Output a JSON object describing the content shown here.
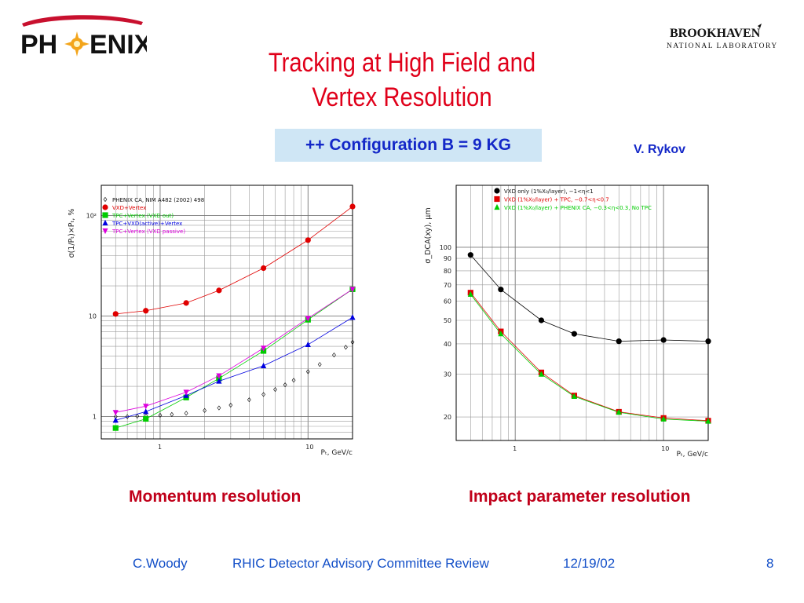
{
  "logos": {
    "left": {
      "text_ph": "PH",
      "text_enix": "ENIX"
    },
    "right": {
      "line1": "BROOKHAVEN",
      "line2": "NATIONAL LABORATORY"
    }
  },
  "title": {
    "line1": "Tracking at High Field and",
    "line2": "Vertex Resolution"
  },
  "config_box": "++ Configuration  B = 9 KG",
  "author": "V. Rykov",
  "captions": {
    "left": "Momentum resolution",
    "right": "Impact parameter resolution"
  },
  "footer": {
    "author": "C.Woody",
    "event": "RHIC Detector Advisory Committee Review",
    "date": "12/19/02",
    "page": "8"
  },
  "colors": {
    "title": "#e0001a",
    "accent_blue": "#1428c8",
    "caption": "#c0001a",
    "box": "#cfe6f5"
  },
  "chart_data": [
    {
      "type": "line",
      "xscale": "log",
      "yscale": "log",
      "xlim": [
        0.4,
        20
      ],
      "ylim": [
        0.6,
        200
      ],
      "xlabel": "Pₜ, GeV/c",
      "ylabel": "σ(1/Pₜ)×Pₜ, %",
      "xticks": [
        {
          "v": 1,
          "label": "1"
        },
        {
          "v": 10,
          "label": "10"
        }
      ],
      "yticks": [
        {
          "v": 1,
          "label": "1"
        },
        {
          "v": 10,
          "label": "10"
        },
        {
          "v": 100,
          "label": "10²"
        }
      ],
      "grid": true,
      "legend_position": "top-left",
      "series": [
        {
          "name": "PHENIX CA, NIM A482 (2002) 498",
          "color": "#000000",
          "marker": "diamond",
          "x": [
            0.5,
            0.6,
            0.7,
            0.8,
            1.0,
            1.2,
            1.5,
            2,
            2.5,
            3,
            4,
            5,
            6,
            7,
            8,
            10,
            12,
            15,
            18,
            20
          ],
          "y": [
            1.0,
            1.0,
            1.01,
            1.02,
            1.03,
            1.05,
            1.08,
            1.15,
            1.22,
            1.3,
            1.47,
            1.66,
            1.86,
            2.07,
            2.3,
            2.8,
            3.3,
            4.1,
            4.9,
            5.5
          ]
        },
        {
          "name": "VXD+Vertex",
          "color": "#e00000",
          "marker": "circle",
          "x": [
            0.5,
            0.8,
            1.5,
            2.5,
            5,
            10,
            20
          ],
          "y": [
            10.5,
            11.3,
            13.5,
            18,
            30,
            57,
            123
          ]
        },
        {
          "name": "TPC+Vertex (VXD out)",
          "color": "#00cc00",
          "marker": "square",
          "x": [
            0.5,
            0.8,
            1.5,
            2.5,
            5,
            10,
            20
          ],
          "y": [
            0.77,
            0.95,
            1.55,
            2.4,
            4.5,
            9.2,
            18.5
          ]
        },
        {
          "name": "TPC+VXD(active)+Vertex",
          "color": "#0000e0",
          "marker": "triangle",
          "x": [
            0.5,
            0.8,
            1.5,
            2.5,
            5,
            10,
            20
          ],
          "y": [
            0.92,
            1.12,
            1.62,
            2.25,
            3.2,
            5.2,
            9.7
          ]
        },
        {
          "name": "TPC+Vertex (VXD passive)",
          "color": "#dd00dd",
          "marker": "triangle-down",
          "x": [
            0.5,
            0.8,
            1.5,
            2.5,
            5,
            10,
            20
          ],
          "y": [
            1.1,
            1.27,
            1.75,
            2.55,
            4.8,
            9.5,
            18.5
          ]
        }
      ]
    },
    {
      "type": "line",
      "xscale": "log",
      "yscale": "log",
      "xlim": [
        0.4,
        20
      ],
      "ylim": [
        16,
        180
      ],
      "xlabel": "Pₜ, GeV/c",
      "ylabel": "σ_DCA(xy), μm",
      "xticks": [
        {
          "v": 1,
          "label": "1"
        },
        {
          "v": 10,
          "label": "10"
        }
      ],
      "yticks": [
        {
          "v": 20,
          "label": "20"
        },
        {
          "v": 30,
          "label": "30"
        },
        {
          "v": 40,
          "label": "40"
        },
        {
          "v": 50,
          "label": "50"
        },
        {
          "v": 60,
          "label": "60"
        },
        {
          "v": 70,
          "label": "70"
        },
        {
          "v": 80,
          "label": "80"
        },
        {
          "v": 90,
          "label": "90"
        },
        {
          "v": 100,
          "label": "100"
        }
      ],
      "grid": true,
      "legend_position": "top",
      "series": [
        {
          "name": "VXD only (1%X₀/layer), −1<η<1",
          "color": "#000000",
          "marker": "circle",
          "x": [
            0.5,
            0.8,
            1.5,
            2.5,
            5,
            10,
            20
          ],
          "y": [
            93,
            67,
            50,
            44,
            41,
            41.5,
            41
          ]
        },
        {
          "name": "VXD (1%X₀/layer) + TPC, −0.7<η<0.7",
          "color": "#e00000",
          "marker": "square",
          "x": [
            0.5,
            0.8,
            1.5,
            2.5,
            5,
            10,
            20
          ],
          "y": [
            65,
            45,
            30.5,
            24.5,
            21,
            19.8,
            19.3
          ]
        },
        {
          "name": "VXD (1%X₀/layer) + PHENIX CA, −0.3<η<0.3, No TPC",
          "color": "#00cc00",
          "marker": "triangle",
          "x": [
            0.5,
            0.8,
            1.5,
            2.5,
            5,
            10,
            20
          ],
          "y": [
            64,
            44,
            30,
            24.3,
            20.9,
            19.6,
            19.2
          ]
        }
      ]
    }
  ]
}
